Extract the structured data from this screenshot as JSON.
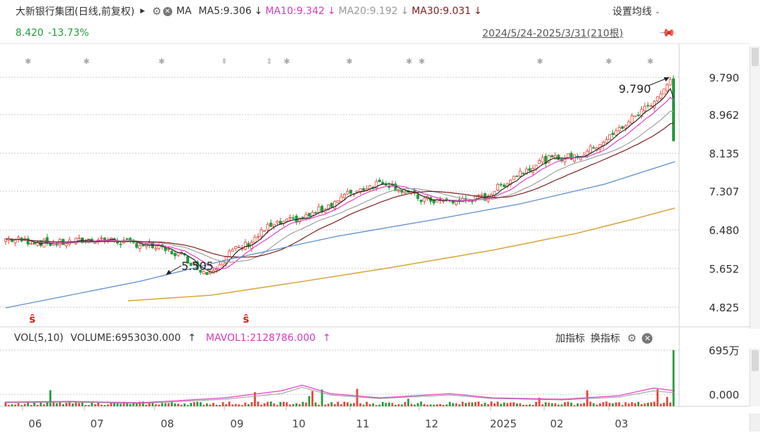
{
  "header": {
    "stock_name": "大新银行集团(日线,前复权)",
    "ma_label": "MA",
    "ma5": "MA5:9.306",
    "ma10": "MA10:9.342",
    "ma20": "MA20:9.192",
    "ma30": "MA30:9.031",
    "down_arrow": "↓",
    "settings_label": "设置均线",
    "price": "8.420",
    "change": "-13.73%",
    "range": "2024/5/24-2025/3/31(210根)"
  },
  "main_chart": {
    "y_ticks": [
      "9.790",
      "8.962",
      "8.135",
      "7.307",
      "6.480",
      "5.652",
      "4.825"
    ],
    "high_label": "9.790",
    "low_label": "5.505",
    "colors": {
      "up": "#e8443a",
      "down": "#1f9d3a",
      "ma5": "#222222",
      "ma10": "#e040c8",
      "ma20": "#a0a0a0",
      "ma30": "#7a1f1f",
      "ma60": "#5b8fd0",
      "ma120": "#d8a840"
    }
  },
  "volume": {
    "vol_label": "VOL(5,10)",
    "volume_value": "VOLUME:6953030.000",
    "up_arrow": "↑",
    "mavol1": "MAVOL1:2128786.000",
    "add_indicator": "加指标",
    "switch_indicator": "换指标",
    "y_ticks": [
      "695万",
      "0.000"
    ]
  },
  "months": [
    "06",
    "07",
    "08",
    "09",
    "10",
    "11",
    "12",
    "2025",
    "02",
    "03"
  ]
}
